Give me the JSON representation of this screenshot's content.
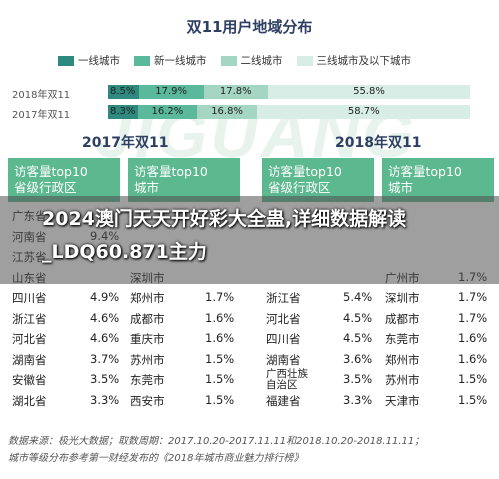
{
  "page_title": "双11用户地域分布",
  "watermark": "JIGUANG",
  "legend": [
    {
      "label": "一线城市",
      "color": "#2e8a7e"
    },
    {
      "label": "新一线城市",
      "color": "#59b99a"
    },
    {
      "label": "二线城市",
      "color": "#a5d6c3"
    },
    {
      "label": "三线城市及以下城市",
      "color": "#d8ede5"
    }
  ],
  "chart_data": {
    "type": "bar",
    "stacked": true,
    "orientation": "horizontal",
    "title": "双11用户地域分布",
    "categories": [
      "2018年双11",
      "2017年双11"
    ],
    "series": [
      {
        "name": "一线城市",
        "values": [
          8.5,
          8.3
        ],
        "labels": [
          "8.5%",
          "8.3%"
        ]
      },
      {
        "name": "新一线城市",
        "values": [
          17.9,
          16.2
        ],
        "labels": [
          "17.9%",
          "16.2%"
        ]
      },
      {
        "name": "二线城市",
        "values": [
          17.8,
          16.8
        ],
        "labels": [
          "17.8%",
          "16.8%"
        ]
      },
      {
        "name": "三线城市及以下城市",
        "values": [
          55.8,
          58.7
        ],
        "labels": [
          "55.8%",
          "58.7%"
        ]
      }
    ],
    "xlim": [
      0,
      100
    ]
  },
  "panel_2017": {
    "title": "2017年双11",
    "province_header_1": "访客量top10",
    "province_header_2": "省级行政区",
    "city_header_1": "访客量top10",
    "city_header_2": "城市",
    "rows": [
      {
        "province": "广东省",
        "p_val": "",
        "city": "",
        "c_val": ""
      },
      {
        "province": "河南省",
        "p_val": "9.4%",
        "city": "",
        "c_val": ""
      },
      {
        "province": "江苏省",
        "p_val": "",
        "city": "",
        "c_val": ""
      },
      {
        "province": "山东省",
        "p_val": "",
        "city": "深圳市",
        "c_val": ""
      },
      {
        "province": "四川省",
        "p_val": "4.9%",
        "city": "郑州市",
        "c_val": "1.7%"
      },
      {
        "province": "浙江省",
        "p_val": "4.6%",
        "city": "成都市",
        "c_val": "1.6%"
      },
      {
        "province": "河北省",
        "p_val": "4.6%",
        "city": "重庆市",
        "c_val": "1.6%"
      },
      {
        "province": "湖南省",
        "p_val": "3.7%",
        "city": "苏州市",
        "c_val": "1.5%"
      },
      {
        "province": "安徽省",
        "p_val": "3.5%",
        "city": "东莞市",
        "c_val": "1.5%"
      },
      {
        "province": "湖北省",
        "p_val": "3.3%",
        "city": "西安市",
        "c_val": "1.5%"
      }
    ]
  },
  "panel_2018": {
    "title": "2018年双11",
    "province_header_1": "访客量top10",
    "province_header_2": "省级行政区",
    "city_header_1": "访客量top10",
    "city_header_2": "城市",
    "rows": [
      {
        "province": "",
        "p_val": "",
        "city": "",
        "c_val": ""
      },
      {
        "province": "",
        "p_val": "",
        "city": "",
        "c_val": ""
      },
      {
        "province": "",
        "p_val": "",
        "city": "",
        "c_val": ""
      },
      {
        "province": "",
        "p_val": "",
        "city": "广州市",
        "c_val": "1.7%"
      },
      {
        "province": "浙江省",
        "p_val": "5.4%",
        "city": "深圳市",
        "c_val": "1.7%"
      },
      {
        "province": "河北省",
        "p_val": "4.5%",
        "city": "成都市",
        "c_val": "1.7%"
      },
      {
        "province": "四川省",
        "p_val": "4.5%",
        "city": "东莞市",
        "c_val": "1.6%"
      },
      {
        "province": "湖南省",
        "p_val": "3.6%",
        "city": "郑州市",
        "c_val": "1.6%"
      },
      {
        "province": "广西壮族自治区",
        "p_val": "3.5%",
        "city": "苏州市",
        "c_val": "1.5%"
      },
      {
        "province": "福建省",
        "p_val": "3.3%",
        "city": "天津市",
        "c_val": "1.5%"
      }
    ]
  },
  "banner_text": "2024澳门天天开好彩大全蛊,详细数据解读_LDQ60.871主力",
  "footer_line1": "数据来源：极光大数据；取数周期：2017.10.20-2017.11.11和2018.10.20-2018.11.11；",
  "footer_line2": "城市等级分布参考第一财经发布的《2018年城市商业魅力排行榜》"
}
